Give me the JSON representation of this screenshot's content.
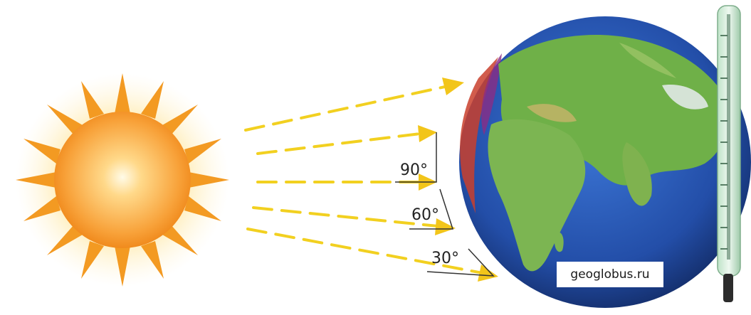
{
  "angles": [
    {
      "label": "90°"
    },
    {
      "label": "60°"
    },
    {
      "label": "30°"
    }
  ],
  "watermark": "geoglobus.ru",
  "colors": {
    "sun_core": "#ffd98a",
    "sun_edge": "#f08a14",
    "ray": "#f2d020",
    "ocean": "#2756b8",
    "land": "#6fb048"
  },
  "icons": {
    "sun": "sun-icon",
    "globe": "earth-globe-icon",
    "thermometer": "thermometer-icon"
  }
}
